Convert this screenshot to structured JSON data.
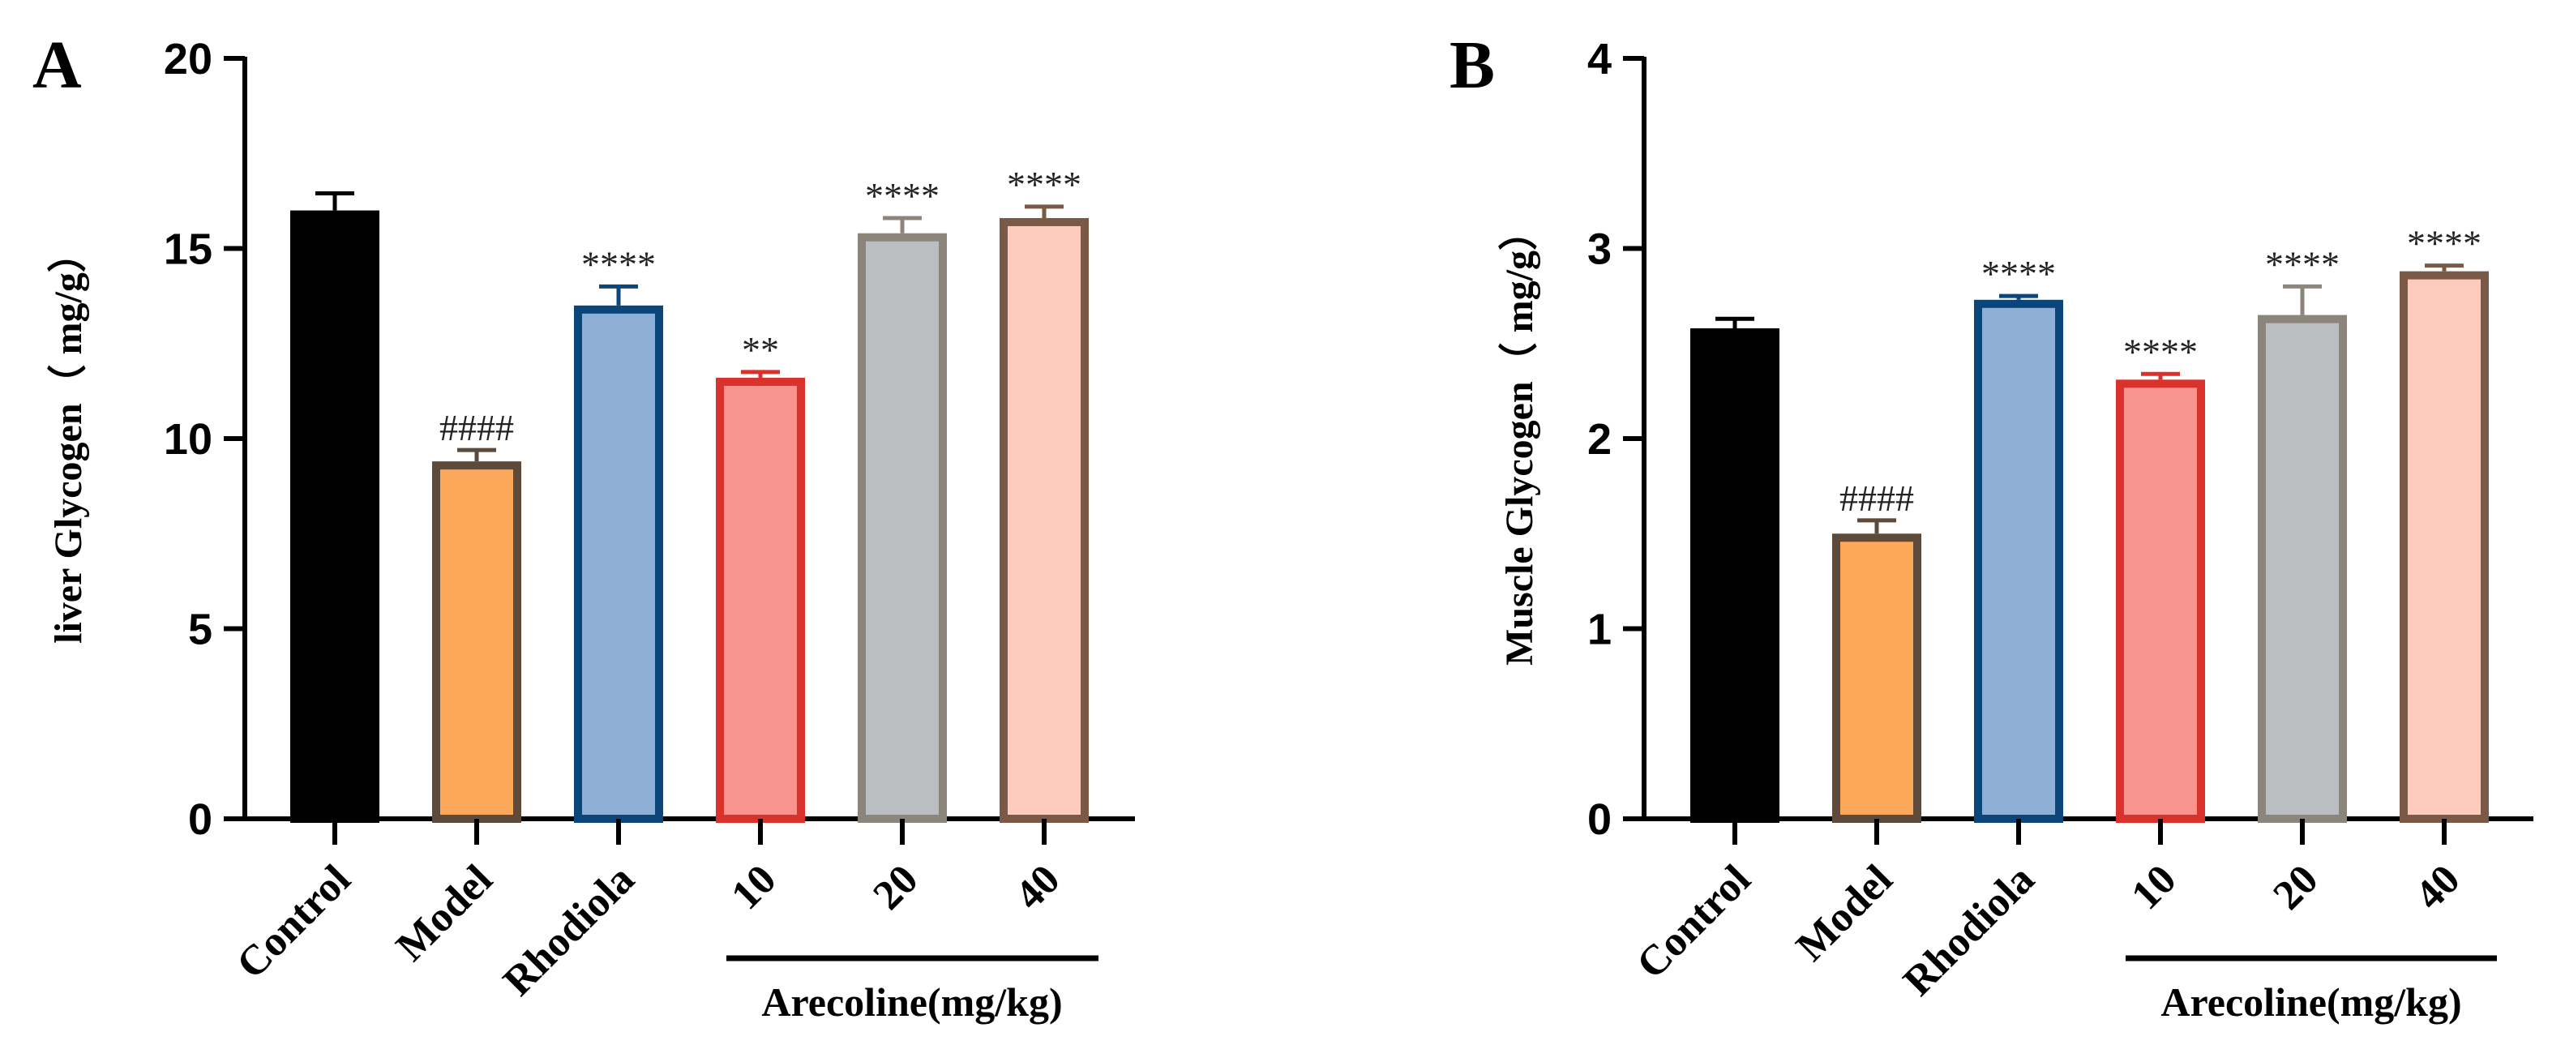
{
  "chart_data": [
    {
      "type": "bar",
      "panel": "A",
      "ylabel": "liver Glycogen（ mg/g）",
      "ylim": [
        0,
        20
      ],
      "yticks": [
        0,
        5,
        10,
        15,
        20
      ],
      "categories": [
        "Control",
        "Model",
        "Rhodiola",
        "10",
        "20",
        "40"
      ],
      "values": [
        16.0,
        9.4,
        13.5,
        11.6,
        15.4,
        15.8
      ],
      "errors": [
        0.45,
        0.3,
        0.5,
        0.15,
        0.4,
        0.3
      ],
      "annotations": [
        "",
        "####",
        "****",
        "**",
        "****",
        "****"
      ],
      "group_label": "Arecoline(mg/kg)"
    },
    {
      "type": "bar",
      "panel": "B",
      "ylabel": "Muscle Glycogen（ mg/g）",
      "ylim": [
        0,
        4
      ],
      "yticks": [
        0,
        1,
        2,
        3,
        4
      ],
      "categories": [
        "Control",
        "Model",
        "Rhodiola",
        "10",
        "20",
        "40"
      ],
      "values": [
        2.58,
        1.5,
        2.73,
        2.31,
        2.65,
        2.88
      ],
      "errors": [
        0.05,
        0.07,
        0.02,
        0.03,
        0.15,
        0.03
      ],
      "annotations": [
        "",
        "####",
        "****",
        "****",
        "****",
        "****"
      ],
      "group_label": "Arecoline(mg/kg)"
    }
  ],
  "style": {
    "bar_fills": [
      "#000000",
      "#FBA85B",
      "#8EAFD6",
      "#F9938E",
      "#BABEC1",
      "#FCCBBE"
    ],
    "bar_edges": [
      "#000000",
      "#5E4A3A",
      "#0A4679",
      "#D9312B",
      "#8C857B",
      "#7A5A47"
    ]
  }
}
